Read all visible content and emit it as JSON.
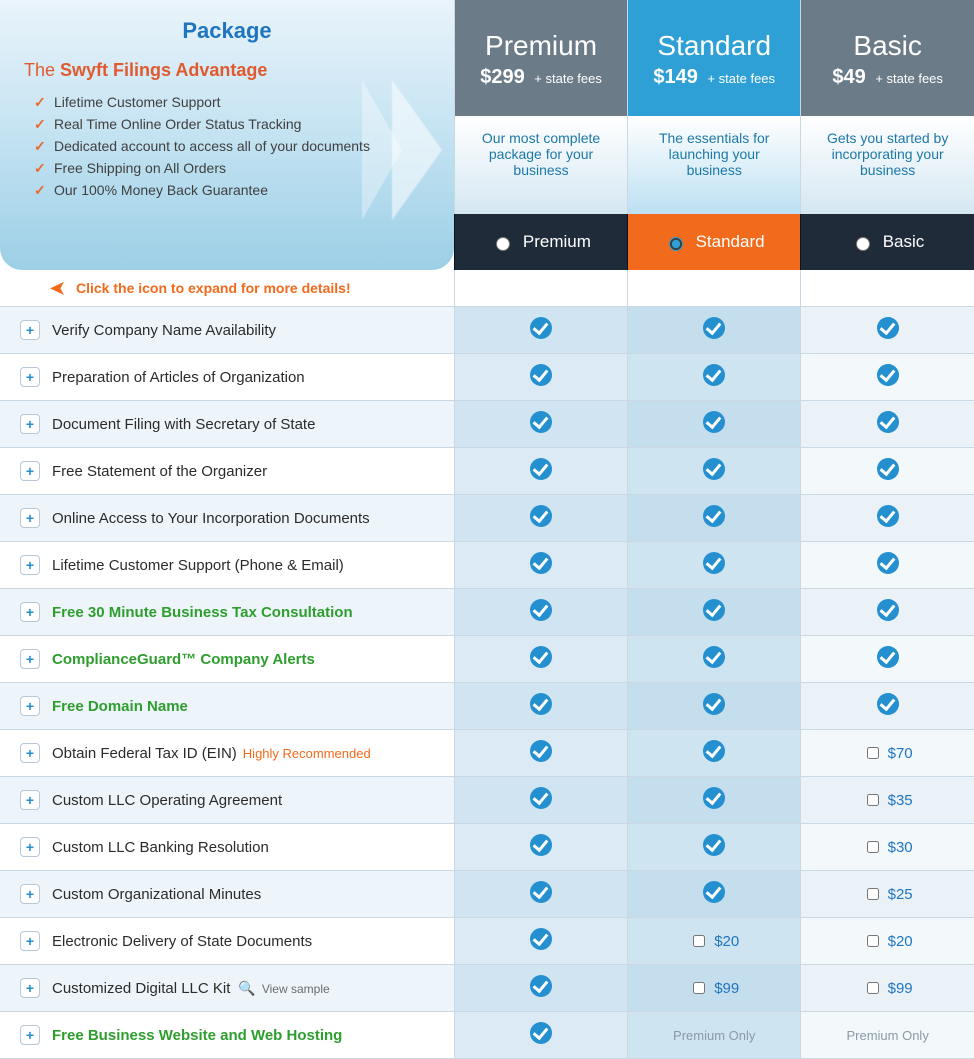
{
  "package": {
    "title": "Package",
    "subtitle_prefix": "The ",
    "subtitle_bold": "Swyft Filings Advantage",
    "advantages": [
      "Lifetime Customer Support",
      "Real Time Online Order Status Tracking",
      "Dedicated account to access all of your documents",
      "Free Shipping on All Orders",
      "Our 100% Money Back Guarantee"
    ]
  },
  "expand_hint": "Click the icon to expand for more details!",
  "plans": {
    "premium": {
      "name": "Premium",
      "price": "$299",
      "fees": "+ state fees",
      "desc": "Our most complete package for your business",
      "radio_label": "Premium",
      "selected": false
    },
    "standard": {
      "name": "Standard",
      "price": "$149",
      "fees": "+ state fees",
      "desc": "The essentials for launching your business",
      "radio_label": "Standard",
      "selected": true
    },
    "basic": {
      "name": "Basic",
      "price": "$49",
      "fees": "+ state fees",
      "desc": "Gets you started by incorporating your business",
      "radio_label": "Basic",
      "selected": false
    }
  },
  "premium_only_text": "Premium Only",
  "features": [
    {
      "label": "Verify Company Name Availability",
      "hl": false,
      "premium": "check",
      "standard": "check",
      "basic": "check"
    },
    {
      "label": "Preparation of Articles of Organization",
      "hl": false,
      "premium": "check",
      "standard": "check",
      "basic": "check"
    },
    {
      "label": "Document Filing with Secretary of State",
      "hl": false,
      "premium": "check",
      "standard": "check",
      "basic": "check"
    },
    {
      "label": "Free Statement of the Organizer",
      "hl": false,
      "premium": "check",
      "standard": "check",
      "basic": "check"
    },
    {
      "label": "Online Access to Your Incorporation Documents",
      "hl": false,
      "premium": "check",
      "standard": "check",
      "basic": "check"
    },
    {
      "label": "Lifetime Customer Support (Phone & Email)",
      "hl": false,
      "premium": "check",
      "standard": "check",
      "basic": "check"
    },
    {
      "label": "Free 30 Minute Business Tax Consultation",
      "hl": true,
      "premium": "check",
      "standard": "check",
      "basic": "check"
    },
    {
      "label": "ComplianceGuard™ Company Alerts",
      "hl": true,
      "premium": "check",
      "standard": "check",
      "basic": "check"
    },
    {
      "label": "Free Domain Name",
      "hl": true,
      "premium": "check",
      "standard": "check",
      "basic": "check"
    },
    {
      "label": "Obtain Federal Tax ID (EIN)",
      "hl": false,
      "badge": "Highly Recommended",
      "premium": "check",
      "standard": "check",
      "basic": "$70"
    },
    {
      "label": "Custom LLC Operating Agreement",
      "hl": false,
      "premium": "check",
      "standard": "check",
      "basic": "$35"
    },
    {
      "label": "Custom LLC Banking Resolution",
      "hl": false,
      "premium": "check",
      "standard": "check",
      "basic": "$30"
    },
    {
      "label": "Custom Organizational Minutes",
      "hl": false,
      "premium": "check",
      "standard": "check",
      "basic": "$25"
    },
    {
      "label": "Electronic Delivery of State Documents",
      "hl": false,
      "premium": "check",
      "standard": "$20",
      "basic": "$20"
    },
    {
      "label": "Customized Digital LLC Kit",
      "hl": false,
      "view_sample": "View sample",
      "premium": "check",
      "standard": "$99",
      "basic": "$99"
    },
    {
      "label": "Free Business Website and Web Hosting",
      "hl": true,
      "premium": "check",
      "standard": "premium_only",
      "basic": "premium_only"
    }
  ]
}
